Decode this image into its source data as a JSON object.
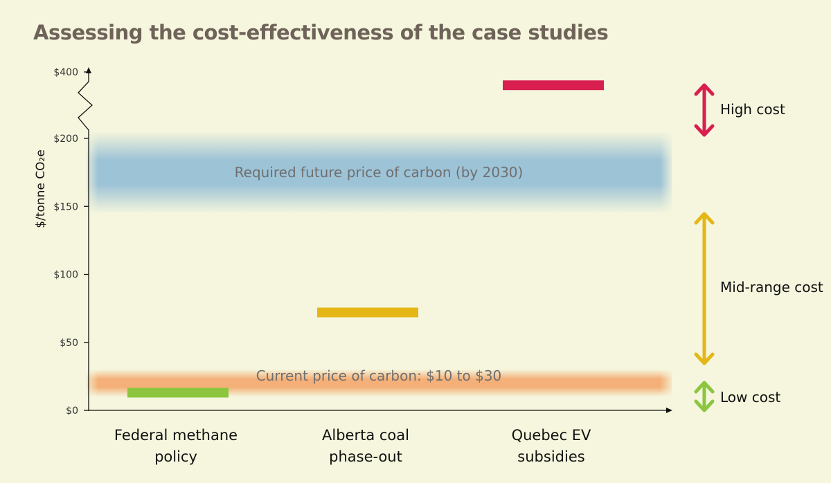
{
  "chart_data": {
    "type": "range-bar",
    "title": "Assessing the cost-effectiveness of the case studies",
    "ylabel": "$/tonne CO₂e",
    "y_ticks": [
      "$0",
      "$50",
      "$100",
      "$150",
      "$200",
      "$400"
    ],
    "ylim": [
      0,
      400
    ],
    "axis_break": "between $200 and $400",
    "categories": [
      "Federal methane policy",
      "Alberta coal phase-out",
      "Quebec EV subsidies"
    ],
    "category_lines": [
      [
        "Federal methane",
        "policy"
      ],
      [
        "Alberta coal",
        "phase-out"
      ],
      [
        "Quebec EV",
        "subsidies"
      ]
    ],
    "values": [
      13,
      72,
      360
    ],
    "bar_colors": [
      "#8cc63f",
      "#e5b716",
      "#d81f4f"
    ],
    "bands": [
      {
        "label": "Required future price of carbon (by 2030)",
        "from": 150,
        "to": 200,
        "color": "#7fb1d4"
      },
      {
        "label": "Current price of carbon: $10 to $30",
        "from": 10,
        "to": 30,
        "color": "#f4a466"
      }
    ],
    "legend": [
      {
        "label": "High cost",
        "color": "#d81f4f"
      },
      {
        "label": "Mid-range cost",
        "color": "#e5b716"
      },
      {
        "label": "Low cost",
        "color": "#8cc63f"
      }
    ]
  }
}
